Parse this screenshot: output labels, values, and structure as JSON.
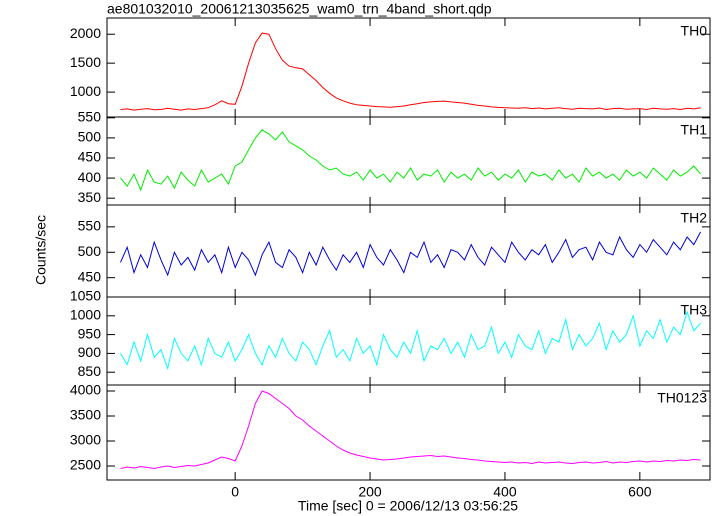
{
  "chart_data": {
    "type": "line",
    "title": "ae801032010_20061213035625_wam0_trn_4band_short.qdp",
    "xlabel": "Time [sec] 0 = 2006/12/13 03:56:25",
    "ylabel": "Counts/sec",
    "xlim": [
      -190,
      704
    ],
    "xticks": [
      0,
      200,
      400,
      600
    ],
    "x": [
      -170,
      -160,
      -150,
      -140,
      -130,
      -120,
      -110,
      -100,
      -90,
      -80,
      -70,
      -60,
      -50,
      -40,
      -30,
      -20,
      -10,
      0,
      10,
      20,
      30,
      40,
      50,
      60,
      70,
      80,
      90,
      100,
      110,
      120,
      130,
      140,
      150,
      160,
      170,
      180,
      190,
      200,
      210,
      220,
      230,
      240,
      250,
      260,
      270,
      280,
      290,
      300,
      310,
      320,
      330,
      340,
      350,
      360,
      370,
      380,
      390,
      400,
      410,
      420,
      430,
      440,
      450,
      460,
      470,
      480,
      490,
      500,
      510,
      520,
      530,
      540,
      550,
      560,
      570,
      580,
      590,
      600,
      610,
      620,
      630,
      640,
      650,
      660,
      670,
      680,
      690
    ],
    "series": [
      {
        "name": "TH0",
        "color": "#ff0000",
        "ylim": [
          570,
          2280
        ],
        "yticks": [
          1000,
          1500,
          2000
        ],
        "values": [
          700,
          710,
          690,
          705,
          715,
          695,
          700,
          720,
          705,
          690,
          710,
          700,
          715,
          730,
          780,
          850,
          800,
          790,
          1100,
          1500,
          1850,
          2020,
          2000,
          1750,
          1550,
          1450,
          1420,
          1400,
          1300,
          1200,
          1080,
          980,
          900,
          850,
          810,
          780,
          770,
          760,
          750,
          745,
          740,
          750,
          760,
          780,
          800,
          820,
          830,
          840,
          845,
          830,
          820,
          810,
          790,
          770,
          760,
          745,
          735,
          730,
          725,
          720,
          730,
          715,
          725,
          710,
          720,
          730,
          715,
          705,
          720,
          715,
          710,
          725,
          700,
          715,
          720,
          705,
          710,
          715,
          700,
          720,
          710,
          705,
          715,
          700,
          720,
          710,
          730
        ]
      },
      {
        "name": "TH1",
        "color": "#00ee00",
        "ylim": [
          333,
          552
        ],
        "yticks": [
          350,
          400,
          450,
          500,
          550
        ],
        "values": [
          400,
          380,
          410,
          370,
          420,
          390,
          385,
          405,
          375,
          415,
          395,
          380,
          420,
          390,
          400,
          410,
          385,
          430,
          440,
          470,
          500,
          520,
          510,
          495,
          515,
          490,
          480,
          470,
          455,
          445,
          430,
          420,
          425,
          410,
          405,
          415,
          395,
          420,
          400,
          410,
          390,
          415,
          400,
          425,
          395,
          410,
          405,
          420,
          390,
          415,
          400,
          410,
          395,
          425,
          405,
          415,
          395,
          410,
          400,
          420,
          390,
          415,
          405,
          410,
          395,
          420,
          400,
          410,
          390,
          425,
          405,
          415,
          400,
          410,
          395,
          420,
          405,
          415,
          400,
          425,
          410,
          395,
          420,
          405,
          415,
          430,
          410
        ]
      },
      {
        "name": "TH2",
        "color": "#0000dd",
        "ylim": [
          412,
          593
        ],
        "yticks": [
          450,
          500,
          550
        ],
        "values": [
          480,
          510,
          460,
          495,
          470,
          520,
          485,
          455,
          500,
          475,
          490,
          465,
          505,
          480,
          495,
          460,
          510,
          470,
          500,
          485,
          455,
          495,
          520,
          480,
          470,
          505,
          490,
          460,
          500,
          475,
          510,
          485,
          465,
          495,
          480,
          500,
          470,
          515,
          490,
          475,
          505,
          485,
          460,
          500,
          490,
          520,
          480,
          495,
          470,
          505,
          500,
          485,
          515,
          490,
          475,
          510,
          495,
          480,
          520,
          500,
          485,
          505,
          495,
          515,
          480,
          500,
          525,
          490,
          505,
          510,
          485,
          520,
          500,
          495,
          530,
          505,
          490,
          515,
          500,
          525,
          510,
          495,
          520,
          505,
          530,
          515,
          540
        ]
      },
      {
        "name": "TH3",
        "color": "#00ffff",
        "ylim": [
          816,
          1050
        ],
        "yticks": [
          850,
          900,
          950,
          1000,
          1050
        ],
        "values": [
          900,
          870,
          930,
          880,
          950,
          890,
          910,
          860,
          940,
          900,
          880,
          920,
          870,
          940,
          900,
          890,
          930,
          880,
          910,
          950,
          900,
          870,
          920,
          890,
          940,
          900,
          880,
          930,
          910,
          870,
          920,
          960,
          890,
          910,
          880,
          940,
          900,
          920,
          870,
          950,
          910,
          890,
          930,
          900,
          960,
          880,
          920,
          910,
          940,
          900,
          930,
          890,
          950,
          910,
          920,
          970,
          900,
          930,
          890,
          950,
          920,
          910,
          960,
          900,
          940,
          930,
          990,
          910,
          950,
          920,
          940,
          980,
          910,
          960,
          930,
          950,
          1000,
          920,
          960,
          940,
          990,
          930,
          970,
          950,
          1010,
          960,
          980
        ]
      },
      {
        "name": "TH0123",
        "color": "#ff00ff",
        "ylim": [
          2220,
          4120
        ],
        "yticks": [
          2500,
          3000,
          3500,
          4000
        ],
        "values": [
          2450,
          2480,
          2460,
          2490,
          2470,
          2450,
          2480,
          2500,
          2470,
          2490,
          2510,
          2500,
          2530,
          2560,
          2620,
          2680,
          2650,
          2600,
          2900,
          3300,
          3750,
          4000,
          3950,
          3850,
          3750,
          3650,
          3500,
          3420,
          3300,
          3200,
          3100,
          3000,
          2900,
          2820,
          2760,
          2720,
          2690,
          2660,
          2640,
          2620,
          2630,
          2640,
          2660,
          2680,
          2690,
          2700,
          2710,
          2690,
          2700,
          2680,
          2660,
          2650,
          2630,
          2620,
          2600,
          2590,
          2580,
          2570,
          2580,
          2560,
          2570,
          2550,
          2580,
          2560,
          2570,
          2580,
          2560,
          2550,
          2570,
          2580,
          2560,
          2570,
          2590,
          2560,
          2580,
          2570,
          2590,
          2600,
          2580,
          2600,
          2590,
          2610,
          2600,
          2620,
          2610,
          2630,
          2620
        ]
      }
    ]
  }
}
